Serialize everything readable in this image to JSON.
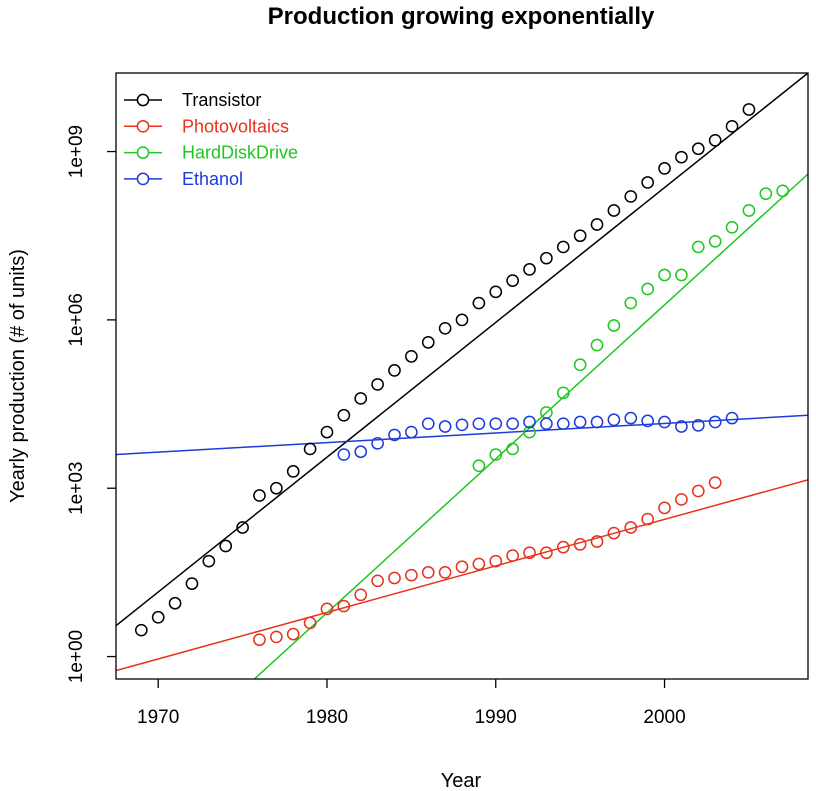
{
  "chart_data": {
    "type": "scatter",
    "title": "Production growing exponentially",
    "xlabel": "Year",
    "ylabel": "Yearly production (# of units)",
    "xlim": [
      1967.5,
      2008.5
    ],
    "ylim_log10": [
      -0.4,
      10.4
    ],
    "y_scale": "log10",
    "x_ticks": [
      1970,
      1980,
      1990,
      2000
    ],
    "x_tick_labels": [
      "1970",
      "1980",
      "1990",
      "2000"
    ],
    "y_ticks_log10": [
      0,
      3,
      6,
      9
    ],
    "y_tick_labels": [
      "1e+00",
      "1e+03",
      "1e+06",
      "1e+09"
    ],
    "grid": false,
    "legend_position": "top-left",
    "series": [
      {
        "name": "Transistor",
        "color": "#000000",
        "x": [
          1969,
          1970,
          1971,
          1972,
          1973,
          1974,
          1975,
          1976,
          1977,
          1978,
          1979,
          1980,
          1981,
          1982,
          1983,
          1984,
          1985,
          1986,
          1987,
          1988,
          1989,
          1990,
          1991,
          1992,
          1993,
          1994,
          1995,
          1996,
          1997,
          1998,
          1999,
          2000,
          2001,
          2002,
          2003,
          2004,
          2005
        ],
        "log10_y": [
          0.47,
          0.7,
          0.95,
          1.3,
          1.7,
          1.97,
          2.3,
          2.87,
          3.0,
          3.3,
          3.7,
          4.0,
          4.3,
          4.6,
          4.85,
          5.1,
          5.35,
          5.6,
          5.85,
          6.0,
          6.3,
          6.5,
          6.7,
          6.9,
          7.1,
          7.3,
          7.5,
          7.7,
          7.95,
          8.2,
          8.45,
          8.7,
          8.9,
          9.05,
          9.2,
          9.45,
          9.75
        ],
        "fit_log10_endpoints": [
          [
            1967.5,
            0.55
          ],
          [
            2008.5,
            10.4
          ]
        ]
      },
      {
        "name": "Photovoltaics",
        "color": "#e8321c",
        "x": [
          1976,
          1977,
          1978,
          1979,
          1980,
          1981,
          1982,
          1983,
          1984,
          1985,
          1986,
          1987,
          1988,
          1989,
          1990,
          1991,
          1992,
          1993,
          1994,
          1995,
          1996,
          1997,
          1998,
          1999,
          2000,
          2001,
          2002,
          2003
        ],
        "log10_y": [
          0.3,
          0.35,
          0.4,
          0.6,
          0.85,
          0.9,
          1.1,
          1.35,
          1.4,
          1.45,
          1.5,
          1.5,
          1.6,
          1.65,
          1.7,
          1.8,
          1.85,
          1.85,
          1.95,
          2.0,
          2.05,
          2.2,
          2.3,
          2.45,
          2.65,
          2.8,
          2.95,
          3.1
        ],
        "fit_log10_endpoints": [
          [
            1967.5,
            -0.25
          ],
          [
            2008.5,
            3.15
          ]
        ]
      },
      {
        "name": "HardDiskDrive",
        "color": "#1ec81e",
        "x": [
          1989,
          1990,
          1991,
          1992,
          1993,
          1994,
          1995,
          1996,
          1997,
          1998,
          1999,
          2000,
          2001,
          2002,
          2003,
          2004,
          2005,
          2006,
          2007
        ],
        "log10_y": [
          3.4,
          3.6,
          3.7,
          4.0,
          4.35,
          4.7,
          5.2,
          5.55,
          5.9,
          6.3,
          6.55,
          6.8,
          6.8,
          7.3,
          7.4,
          7.65,
          7.95,
          8.25,
          8.3
        ],
        "fit_log10_endpoints": [
          [
            1975.7,
            -0.4
          ],
          [
            2008.5,
            8.6
          ]
        ]
      },
      {
        "name": "Ethanol",
        "color": "#1d3cdc",
        "x": [
          1981,
          1982,
          1983,
          1984,
          1985,
          1986,
          1987,
          1988,
          1989,
          1990,
          1991,
          1992,
          1993,
          1994,
          1995,
          1996,
          1997,
          1998,
          1999,
          2000,
          2001,
          2002,
          2003,
          2004
        ],
        "log10_y": [
          3.6,
          3.65,
          3.8,
          3.95,
          4.0,
          4.15,
          4.1,
          4.13,
          4.15,
          4.15,
          4.15,
          4.18,
          4.15,
          4.15,
          4.18,
          4.18,
          4.22,
          4.25,
          4.2,
          4.18,
          4.1,
          4.12,
          4.18,
          4.25
        ],
        "fit_log10_endpoints": [
          [
            1967.5,
            3.6
          ],
          [
            2008.5,
            4.3
          ]
        ]
      }
    ]
  }
}
